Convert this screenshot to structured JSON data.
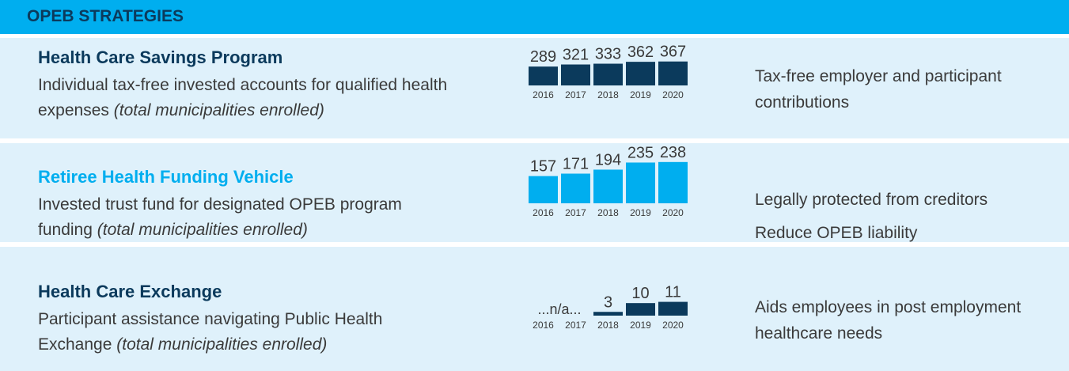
{
  "title": "OPEB STRATEGIES",
  "rows": [
    {
      "heading": "Health Care Savings Program",
      "description": "Individual tax-free invested accounts for qualified health expenses",
      "note": "(total municipalities enrolled)",
      "benefits": [
        "Tax-free employer and participant contributions"
      ]
    },
    {
      "heading": "Retiree Health Funding Vehicle",
      "description": "Invested trust fund for designated OPEB program funding",
      "note": "(total municipalities enrolled)",
      "benefits": [
        "Legally protected from creditors",
        "Reduce OPEB liability"
      ]
    },
    {
      "heading": "Health Care Exchange",
      "description": "Participant assistance navigating Public Health Exchange",
      "note": "(total municipalities enrolled)",
      "benefits": [
        "Aids employees in post employment healthcare needs"
      ]
    }
  ],
  "chart_data": [
    {
      "type": "bar",
      "categories": [
        "2016",
        "2017",
        "2018",
        "2019",
        "2020"
      ],
      "values": [
        289,
        321,
        333,
        362,
        367
      ],
      "color": "#0b3a5c",
      "ylim": [
        0,
        400
      ]
    },
    {
      "type": "bar",
      "categories": [
        "2016",
        "2017",
        "2018",
        "2019",
        "2020"
      ],
      "values": [
        157,
        171,
        194,
        235,
        238
      ],
      "color": "#00aeef",
      "ylim": [
        0,
        260
      ]
    },
    {
      "type": "bar",
      "categories": [
        "2016",
        "2017",
        "2018",
        "2019",
        "2020"
      ],
      "values": [
        null,
        null,
        3,
        10,
        11
      ],
      "color": "#0b3a5c",
      "ylim": [
        0,
        12
      ],
      "annotation": "...n/a..."
    }
  ]
}
